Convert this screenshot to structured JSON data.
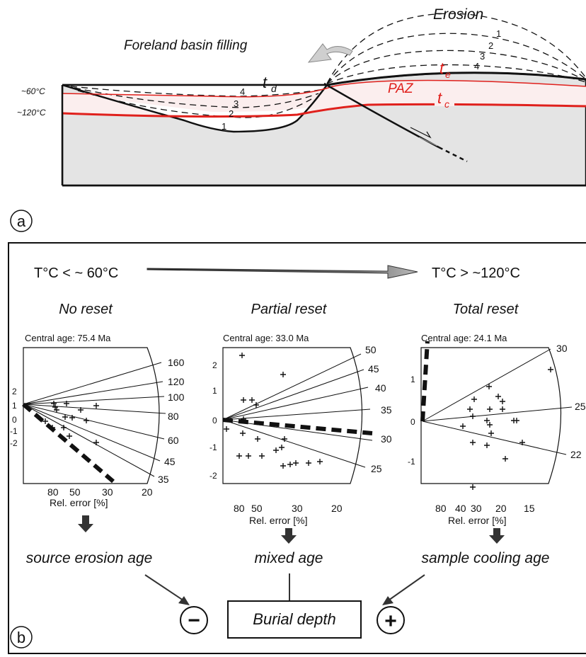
{
  "colors": {
    "red": "#e0201c",
    "gray_fill": "#e4e4e4",
    "pink_fill": "#fbeeee"
  },
  "panel_a": {
    "label": "a",
    "erosion": "Erosion",
    "foreland": "Foreland basin filling",
    "temp_60": "~60°C",
    "temp_120": "~120°C",
    "td": "t",
    "td_sub": "d",
    "te": "t",
    "te_sub": "e",
    "tc": "t",
    "tc_sub": "c",
    "paz": "PAZ",
    "basin_levels": [
      "1",
      "2",
      "3",
      "4"
    ],
    "erosion_levels": [
      "1",
      "2",
      "3",
      "4"
    ]
  },
  "panel_b": {
    "label": "b",
    "temp_low": "T°C < ~ 60°C",
    "temp_high": "T°C > ~120°C",
    "burial": "Burial depth",
    "minus": "−",
    "plus": "+",
    "xlabel": "Rel. error [%]",
    "plots": [
      {
        "title": "No reset",
        "central": "Central age: 75.4 Ma",
        "result": "source erosion age",
        "radial_labels": [
          "160",
          "120",
          "100",
          "80",
          "60",
          "45",
          "35"
        ],
        "y_ticks": [
          "2",
          "1",
          "0",
          "-1",
          "-2"
        ],
        "x_ticks": [
          "80",
          "50",
          "30",
          "20"
        ]
      },
      {
        "title": "Partial reset",
        "central": "Central age: 33.0 Ma",
        "result": "mixed age",
        "radial_labels": [
          "50",
          "45",
          "40",
          "35",
          "30",
          "25"
        ],
        "y_ticks": [
          "2",
          "1",
          "0",
          "-1",
          "-2"
        ],
        "x_ticks": [
          "80",
          "50",
          "30",
          "20"
        ]
      },
      {
        "title": "Total reset",
        "central": "Central age: 24.1 Ma",
        "result": "sample cooling age",
        "radial_labels": [
          "30",
          "25",
          "22"
        ],
        "y_ticks": [
          "1",
          "0",
          "-1"
        ],
        "x_ticks": [
          "80",
          "40",
          "30",
          "20",
          "15"
        ]
      }
    ]
  }
}
